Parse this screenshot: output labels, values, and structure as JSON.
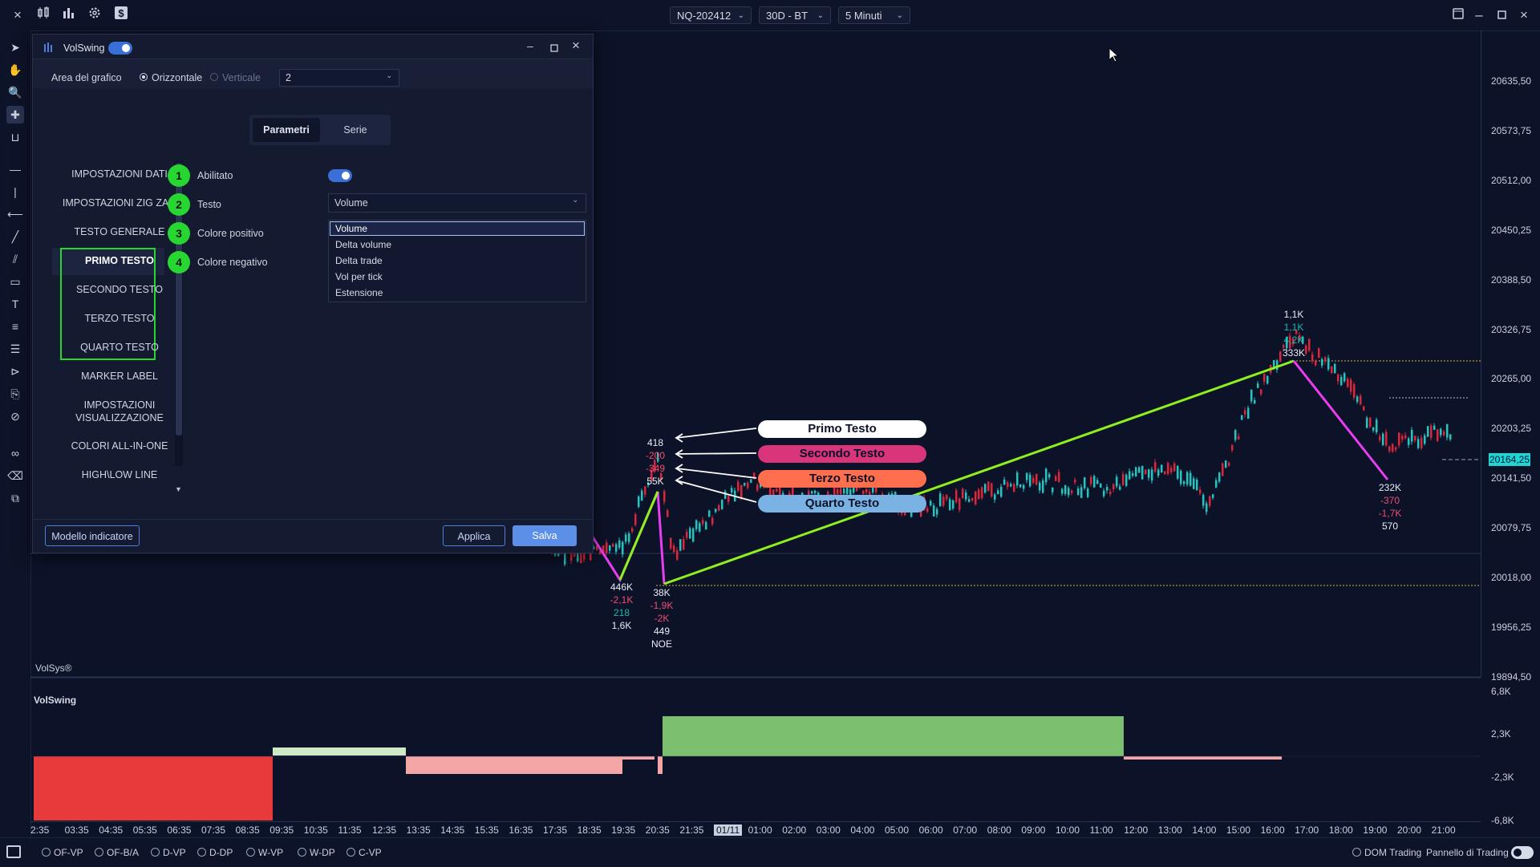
{
  "topbar": {
    "close_icon": "×",
    "instrument": "NQ-202412",
    "period": "30D - BT",
    "timeframe": "5 Minuti"
  },
  "dialog": {
    "title": "VolSwing",
    "area_label": "Area del grafico",
    "radio_horizontal": "Orizzontale",
    "radio_vertical": "Verticale",
    "area_value": "2",
    "tabs": [
      "Parametri",
      "Serie"
    ],
    "menu": [
      "IMPOSTAZIONI DATI",
      "IMPOSTAZIONI ZIG ZAG",
      "TESTO GENERALE",
      "PRIMO TESTO",
      "SECONDO TESTO",
      "TERZO TESTO",
      "QUARTO TESTO",
      "MARKER LABEL",
      "IMPOSTAZIONI",
      "VISUALIZZAZIONE",
      "COLORI ALL-IN-ONE",
      "HIGH\\LOW LINE"
    ],
    "badges": [
      "1",
      "2",
      "3",
      "4"
    ],
    "fields": [
      "Abilitato",
      "Testo",
      "Colore positivo",
      "Colore negativo"
    ],
    "testo_value": "Volume",
    "dropdown_options": [
      "Volume",
      "Delta volume",
      "Delta trade",
      "Vol per tick",
      "Estensione"
    ],
    "template_button": "Modello indicatore",
    "apply_button": "Applica",
    "save_button": "Salva"
  },
  "chart": {
    "indicator_label": "VolSys®",
    "subpanel_title": "VolSwing",
    "price_labels": [
      "20635,50",
      "20573,75",
      "20512,00",
      "20450,25",
      "20388,50",
      "20326,75",
      "20265,00",
      "20203,25",
      "20141,50",
      "20079,75",
      "20018,00",
      "19956,25",
      "19894,50"
    ],
    "current_price": "20164,25",
    "sub_labels": [
      "6,8K",
      "2,3K",
      "-2,3K",
      "-6,8K"
    ],
    "time_labels": [
      "2:35",
      "03:35",
      "04:35",
      "05:35",
      "06:35",
      "07:35",
      "08:35",
      "09:35",
      "10:35",
      "11:35",
      "12:35",
      "13:35",
      "14:35",
      "15:35",
      "16:35",
      "17:35",
      "18:35",
      "19:35",
      "20:35",
      "21:35",
      "01/11",
      "01:00",
      "02:00",
      "03:00",
      "04:00",
      "05:00",
      "06:00",
      "07:00",
      "08:00",
      "09:00",
      "10:00",
      "11:00",
      "12:00",
      "13:00",
      "14:00",
      "15:00",
      "16:00",
      "17:00",
      "18:00",
      "19:00",
      "20:00",
      "21:00"
    ],
    "callouts": [
      "Primo Testo",
      "Secondo Testo",
      "Terzo Testo",
      "Quarto Testo"
    ],
    "swing_a": [
      "418",
      "-200",
      "-349",
      "55K"
    ],
    "swing_b": [
      "446K",
      "-2,1K",
      "218",
      "1,6K"
    ],
    "swing_c": [
      "38K",
      "-1,9K",
      "-2K",
      "449",
      "NOE"
    ],
    "swing_d": [
      "1,1K",
      "1,1K",
      "4,2K",
      "333K"
    ],
    "swing_e": [
      "232K",
      "-370",
      "-1,7K",
      "570"
    ]
  },
  "bottombar": {
    "items": [
      "OF-VP",
      "OF-B/A",
      "D-VP",
      "D-DP",
      "W-VP",
      "W-DP",
      "C-VP"
    ],
    "dom": "DOM Trading",
    "panel": "Pannello di Trading"
  },
  "colors": {
    "accent": "#3b6fd8",
    "badge": "#28d631",
    "zigzag_up": "#8ef01f",
    "zigzag_down": "#e83ef0",
    "bull": "#1fc7c1",
    "bear": "#e0243a"
  }
}
